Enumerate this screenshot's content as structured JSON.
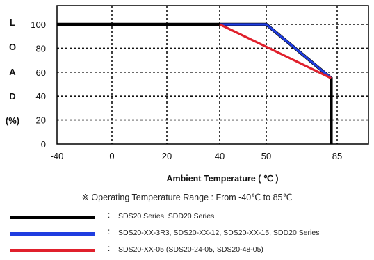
{
  "chart_data": {
    "type": "line",
    "title": "",
    "xlabel": "Ambient Temperature ( ℃ )",
    "ylabel_letters": [
      "L",
      "O",
      "A",
      "D",
      "(%)"
    ],
    "x_ticks": [
      "-40",
      "0",
      "20",
      "40",
      "50",
      "85"
    ],
    "y_ticks": [
      "100",
      "80",
      "60",
      "40",
      "20",
      "0"
    ],
    "xlim": [
      -40,
      85
    ],
    "ylim": [
      0,
      100
    ],
    "grid": "dashed",
    "series": [
      {
        "name": "SDS20 Series,  SDD20 Series",
        "color": "#000000",
        "points": [
          [
            -40,
            100
          ],
          [
            40,
            100
          ],
          [
            50,
            100
          ],
          [
            82,
            55
          ],
          [
            82,
            0
          ]
        ]
      },
      {
        "name": "SDS20-XX-3R3, SDS20-XX-12, SDS20-XX-15, SDD20 Series",
        "color": "#1f3de0",
        "points": [
          [
            40,
            100
          ],
          [
            50,
            100
          ],
          [
            82,
            55
          ]
        ]
      },
      {
        "name": "SDS20-XX-05 (SDS20-24-05, SDS20-48-05)",
        "color": "#e0202c",
        "points": [
          [
            40,
            100
          ],
          [
            82,
            55
          ]
        ]
      }
    ]
  },
  "note": "※ Operating Temperature Range : From -40℃ to 85℃",
  "legend_separator": ":"
}
